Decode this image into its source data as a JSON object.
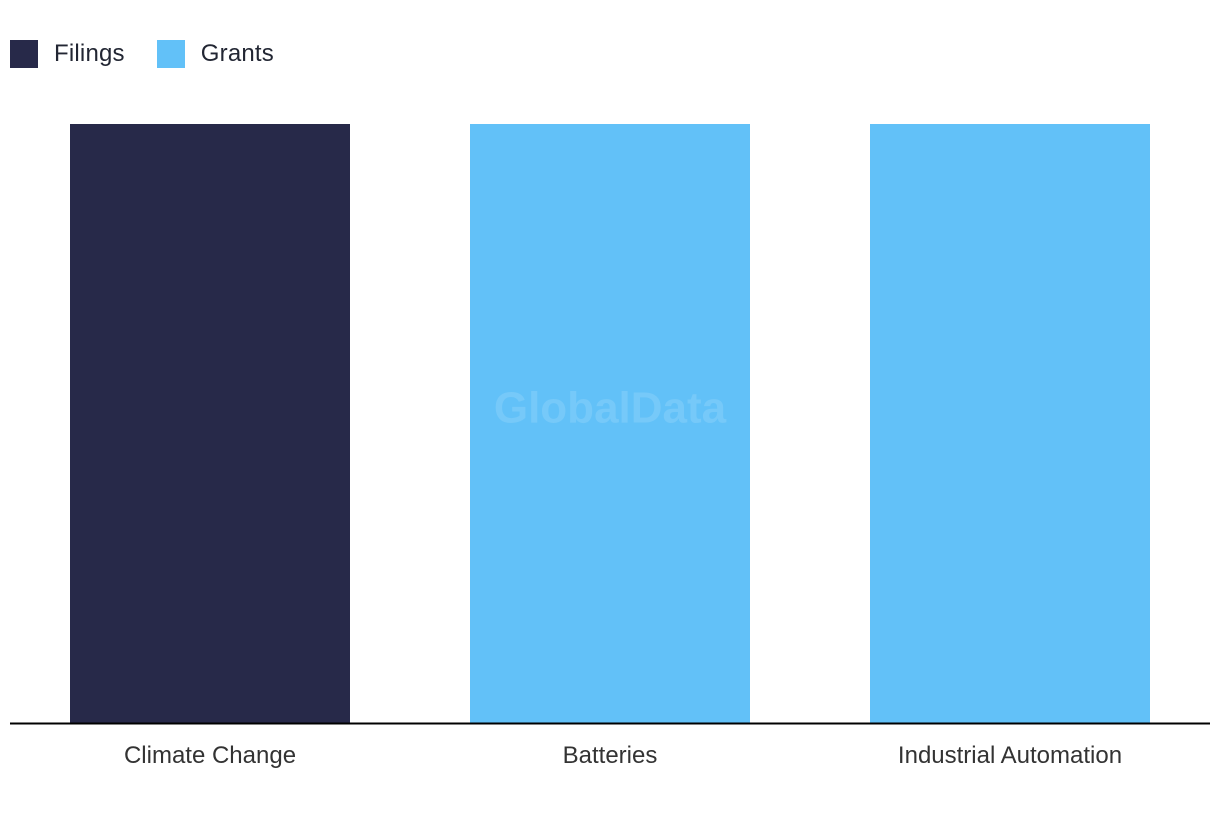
{
  "legend": [
    {
      "label": "Filings",
      "color": "#272949"
    },
    {
      "label": "Grants",
      "color": "#62C1F8"
    }
  ],
  "watermark": "GlobalData",
  "chart_data": {
    "type": "bar",
    "categories": [
      "Climate Change",
      "Batteries",
      "Industrial Automation"
    ],
    "values": [
      100,
      100,
      100
    ],
    "bar_series": [
      "Filings",
      "Grants",
      "Grants"
    ],
    "series": [
      {
        "name": "Filings",
        "values": [
          100,
          null,
          null
        ]
      },
      {
        "name": "Grants",
        "values": [
          null,
          100,
          100
        ]
      }
    ],
    "ylim": [
      0,
      100
    ],
    "grid": false,
    "legend_position": "top-left",
    "title": "",
    "xlabel": "",
    "ylabel": ""
  }
}
